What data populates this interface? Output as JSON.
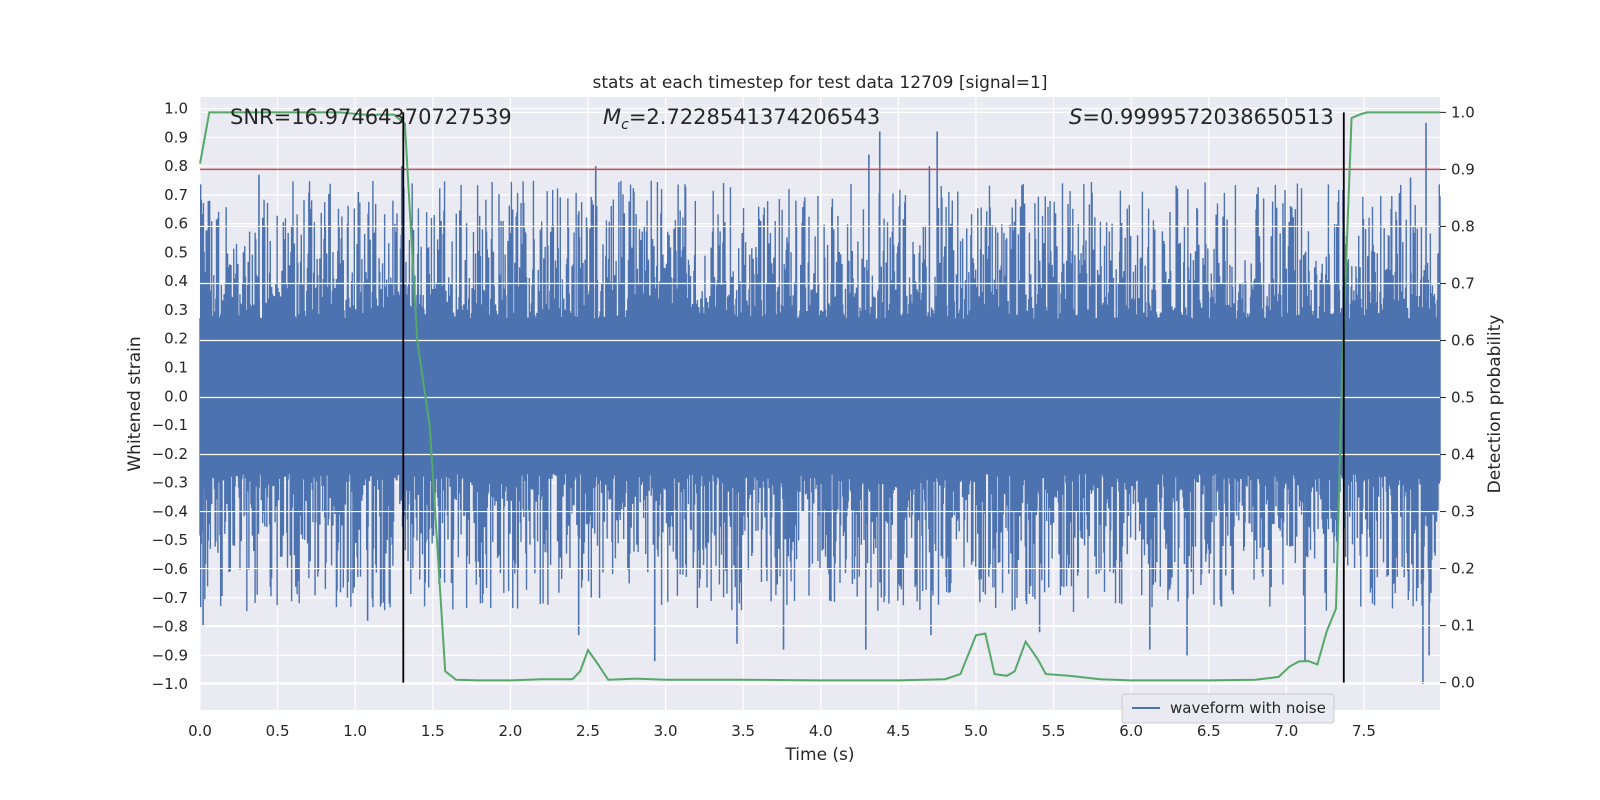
{
  "chart_data": {
    "type": "line",
    "title": "stats at each timestep for test data 12709 [signal=1]",
    "xlabel": "Time (s)",
    "ylabel": "Whitened strain",
    "y2label": "Detection probability",
    "xlim": [
      0.0,
      7.99
    ],
    "ylim": [
      -1.09,
      1.04
    ],
    "y2lim": [
      -0.048,
      1.027
    ],
    "x_ticks": [
      0.0,
      0.5,
      1.0,
      1.5,
      2.0,
      2.5,
      3.0,
      3.5,
      4.0,
      4.5,
      5.0,
      5.5,
      6.0,
      6.5,
      7.0,
      7.5
    ],
    "x_tick_labels": [
      "0.0",
      "0.5",
      "1.0",
      "1.5",
      "2.0",
      "2.5",
      "3.0",
      "3.5",
      "4.0",
      "4.5",
      "5.0",
      "5.5",
      "6.0",
      "6.5",
      "7.0",
      "7.5"
    ],
    "y_ticks": [
      1.0,
      0.9,
      0.8,
      0.7,
      0.6,
      0.5,
      0.4,
      0.3,
      0.2,
      0.1,
      0.0,
      -0.1,
      -0.2,
      -0.3,
      -0.4,
      -0.5,
      -0.6,
      -0.7,
      -0.8,
      -0.9,
      -1.0
    ],
    "y_tick_labels": [
      "1.0",
      "0.9",
      "0.8",
      "0.7",
      "0.6",
      "0.5",
      "0.4",
      "0.3",
      "0.2",
      "0.1",
      "0.0",
      "−0.1",
      "−0.2",
      "−0.3",
      "−0.4",
      "−0.5",
      "−0.6",
      "−0.7",
      "−0.8",
      "−0.9",
      "−1.0"
    ],
    "y2_ticks": [
      1.0,
      0.9,
      0.8,
      0.7,
      0.6,
      0.5,
      0.4,
      0.3,
      0.2,
      0.1,
      0.0
    ],
    "y2_tick_labels": [
      "1.0",
      "0.9",
      "0.8",
      "0.7",
      "0.6",
      "0.5",
      "0.4",
      "0.3",
      "0.2",
      "0.1",
      "0.0"
    ],
    "grid": true,
    "series": [
      {
        "name": "waveform with noise",
        "axis": "left",
        "color": "#4c72b0",
        "style": "dense-noise",
        "sample_count": 1800,
        "core_amplitude": 0.27,
        "spikes": [
          {
            "x": 0.02,
            "y": -0.8
          },
          {
            "x": 0.38,
            "y": 0.77
          },
          {
            "x": 1.02,
            "y": 0.71
          },
          {
            "x": 1.08,
            "y": -0.78
          },
          {
            "x": 1.22,
            "y": -0.72
          },
          {
            "x": 1.3,
            "y": 0.8
          },
          {
            "x": 2.44,
            "y": -0.83
          },
          {
            "x": 2.55,
            "y": 0.8
          },
          {
            "x": 2.93,
            "y": -0.92
          },
          {
            "x": 3.46,
            "y": -0.86
          },
          {
            "x": 3.76,
            "y": -0.88
          },
          {
            "x": 4.29,
            "y": -0.88
          },
          {
            "x": 4.31,
            "y": 0.84
          },
          {
            "x": 4.38,
            "y": 0.92
          },
          {
            "x": 4.75,
            "y": 0.92
          },
          {
            "x": 4.7,
            "y": 0.8
          },
          {
            "x": 4.71,
            "y": -0.83
          },
          {
            "x": 5.41,
            "y": -0.82
          },
          {
            "x": 6.12,
            "y": -0.88
          },
          {
            "x": 6.36,
            "y": -0.9
          },
          {
            "x": 7.12,
            "y": -0.92
          },
          {
            "x": 7.8,
            "y": 0.76
          },
          {
            "x": 7.88,
            "y": -1.0
          },
          {
            "x": 7.9,
            "y": 0.95
          },
          {
            "x": 7.92,
            "y": -0.9
          }
        ]
      },
      {
        "name": "detection probability",
        "axis": "right",
        "color": "#55a868",
        "x": [
          0.0,
          0.06,
          0.2,
          0.5,
          0.9,
          1.1,
          1.15,
          1.25,
          1.32,
          1.4,
          1.48,
          1.58,
          1.65,
          1.8,
          2.0,
          2.2,
          2.4,
          2.45,
          2.5,
          2.56,
          2.63,
          2.72,
          2.8,
          3.0,
          3.5,
          4.0,
          4.5,
          4.8,
          4.9,
          5.0,
          5.06,
          5.12,
          5.2,
          5.25,
          5.32,
          5.4,
          5.45,
          5.6,
          5.8,
          6.0,
          6.5,
          6.8,
          6.95,
          7.02,
          7.08,
          7.14,
          7.2,
          7.26,
          7.32,
          7.36,
          7.42,
          7.48,
          7.52,
          7.6,
          7.99
        ],
        "values": [
          0.91,
          1.0,
          1.0,
          1.0,
          1.0,
          0.995,
          0.996,
          0.996,
          0.98,
          0.6,
          0.45,
          0.02,
          0.005,
          0.004,
          0.004,
          0.006,
          0.006,
          0.02,
          0.057,
          0.034,
          0.005,
          0.006,
          0.007,
          0.005,
          0.005,
          0.004,
          0.004,
          0.006,
          0.015,
          0.083,
          0.086,
          0.015,
          0.012,
          0.02,
          0.072,
          0.04,
          0.015,
          0.012,
          0.006,
          0.004,
          0.004,
          0.005,
          0.01,
          0.028,
          0.037,
          0.038,
          0.032,
          0.09,
          0.13,
          0.55,
          0.99,
          0.997,
          1.0,
          1.0,
          1.0
        ]
      },
      {
        "name": "threshold",
        "axis": "right",
        "color": "#c44e52",
        "values": [
          0.9
        ]
      }
    ],
    "vlines": [
      {
        "x": 1.31,
        "color": "#000000",
        "from": 0.0,
        "to": 1.0
      },
      {
        "x": 7.37,
        "color": "#000000",
        "from": 0.0,
        "to": 1.0
      }
    ],
    "annotations": {
      "snr": "SNR=16.97464370727539",
      "mc_symbol": "M",
      "mc_sub": "c",
      "mc_value": "=2.7228541374206543",
      "s_symbol": "S",
      "s_value": "=0.9999572038650513"
    },
    "legend": {
      "position": "lower-right",
      "entries": [
        "waveform with noise"
      ]
    }
  },
  "colors": {
    "plot_background": "#eaeaf2",
    "grid": "#ffffff",
    "waveform": "#4c72b0",
    "probability": "#55a868",
    "threshold": "#c44e52",
    "vline": "#000000"
  }
}
